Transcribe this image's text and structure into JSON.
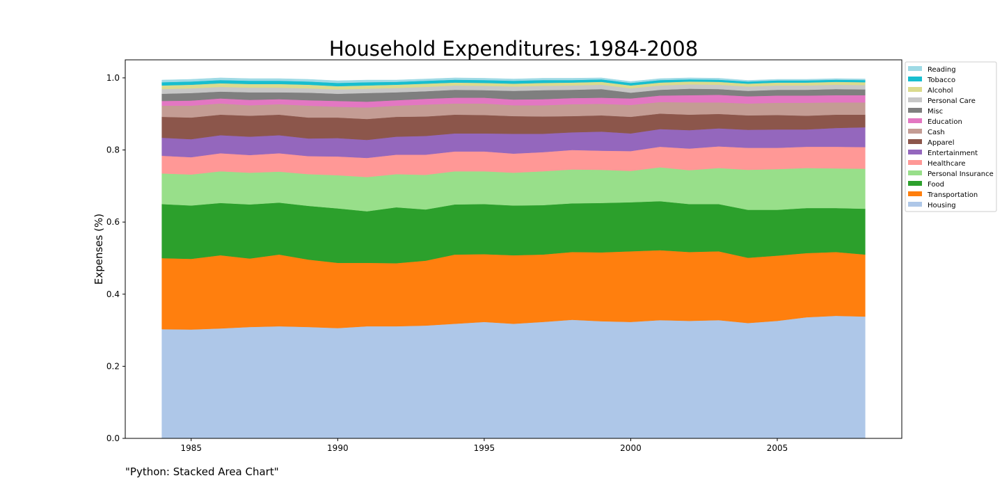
{
  "caption": "\"Python: Stacked Area Chart\"",
  "chart_data": {
    "type": "area",
    "stacked": true,
    "title": "Household Expenditures: 1984-2008",
    "xlabel": "",
    "ylabel": "Expenses (%)",
    "xlim": [
      1982.75,
      2009.25
    ],
    "ylim": [
      0,
      1.05
    ],
    "xticks": [
      1985,
      1990,
      1995,
      2000,
      2005
    ],
    "yticks": [
      0.0,
      0.2,
      0.4,
      0.6,
      0.8,
      1.0
    ],
    "xtick_labels": [
      "1985",
      "1990",
      "1995",
      "2000",
      "2005"
    ],
    "ytick_labels": [
      "0.0",
      "0.2",
      "0.4",
      "0.6",
      "0.8",
      "1.0"
    ],
    "legend_position": "outside-top-right",
    "grid": false,
    "x": [
      1984,
      1985,
      1986,
      1987,
      1988,
      1989,
      1990,
      1991,
      1992,
      1993,
      1994,
      1995,
      1996,
      1997,
      1998,
      1999,
      2000,
      2001,
      2002,
      2003,
      2004,
      2005,
      2006,
      2007,
      2008
    ],
    "series": [
      {
        "name": "Housing",
        "color": "#aec7e8",
        "values": [
          0.303,
          0.302,
          0.305,
          0.309,
          0.311,
          0.309,
          0.306,
          0.311,
          0.311,
          0.313,
          0.318,
          0.323,
          0.318,
          0.323,
          0.329,
          0.325,
          0.323,
          0.328,
          0.326,
          0.328,
          0.32,
          0.326,
          0.336,
          0.34,
          0.338
        ]
      },
      {
        "name": "Transportation",
        "color": "#ff7f0e",
        "values": [
          0.197,
          0.196,
          0.203,
          0.19,
          0.199,
          0.187,
          0.181,
          0.176,
          0.175,
          0.18,
          0.192,
          0.188,
          0.19,
          0.187,
          0.188,
          0.191,
          0.196,
          0.194,
          0.191,
          0.191,
          0.181,
          0.181,
          0.178,
          0.177,
          0.172
        ]
      },
      {
        "name": "Food",
        "color": "#2ca02c",
        "values": [
          0.15,
          0.148,
          0.145,
          0.15,
          0.144,
          0.149,
          0.151,
          0.143,
          0.155,
          0.142,
          0.139,
          0.139,
          0.138,
          0.137,
          0.135,
          0.137,
          0.136,
          0.136,
          0.133,
          0.131,
          0.133,
          0.127,
          0.125,
          0.122,
          0.127
        ]
      },
      {
        "name": "Personal Insurance",
        "color": "#98df8a",
        "values": [
          0.085,
          0.086,
          0.088,
          0.088,
          0.086,
          0.088,
          0.092,
          0.095,
          0.092,
          0.096,
          0.092,
          0.091,
          0.091,
          0.094,
          0.094,
          0.092,
          0.087,
          0.094,
          0.094,
          0.1,
          0.111,
          0.113,
          0.111,
          0.11,
          0.111
        ]
      },
      {
        "name": "Healthcare",
        "color": "#ff9896",
        "values": [
          0.049,
          0.048,
          0.05,
          0.049,
          0.051,
          0.05,
          0.052,
          0.053,
          0.054,
          0.056,
          0.055,
          0.055,
          0.053,
          0.053,
          0.054,
          0.053,
          0.055,
          0.057,
          0.06,
          0.06,
          0.061,
          0.059,
          0.059,
          0.06,
          0.06
        ]
      },
      {
        "name": "Entertainment",
        "color": "#9467bd",
        "values": [
          0.05,
          0.05,
          0.05,
          0.051,
          0.05,
          0.049,
          0.051,
          0.05,
          0.05,
          0.052,
          0.05,
          0.05,
          0.055,
          0.051,
          0.049,
          0.053,
          0.049,
          0.049,
          0.051,
          0.05,
          0.05,
          0.051,
          0.048,
          0.052,
          0.055
        ]
      },
      {
        "name": "Apparel",
        "color": "#8c564b",
        "values": [
          0.058,
          0.06,
          0.057,
          0.058,
          0.057,
          0.058,
          0.057,
          0.058,
          0.055,
          0.054,
          0.052,
          0.051,
          0.049,
          0.048,
          0.045,
          0.045,
          0.046,
          0.043,
          0.043,
          0.04,
          0.04,
          0.04,
          0.038,
          0.037,
          0.035
        ]
      },
      {
        "name": "Cash",
        "color": "#c49c94",
        "values": [
          0.031,
          0.033,
          0.031,
          0.029,
          0.029,
          0.033,
          0.03,
          0.032,
          0.031,
          0.033,
          0.031,
          0.032,
          0.03,
          0.031,
          0.033,
          0.032,
          0.033,
          0.032,
          0.034,
          0.032,
          0.033,
          0.034,
          0.036,
          0.034,
          0.034
        ]
      },
      {
        "name": "Education",
        "color": "#e377c2",
        "values": [
          0.013,
          0.014,
          0.014,
          0.015,
          0.014,
          0.015,
          0.016,
          0.016,
          0.015,
          0.016,
          0.016,
          0.016,
          0.016,
          0.017,
          0.017,
          0.017,
          0.018,
          0.018,
          0.02,
          0.021,
          0.02,
          0.02,
          0.02,
          0.02,
          0.02
        ]
      },
      {
        "name": "Misc",
        "color": "#7f7f7f",
        "values": [
          0.02,
          0.021,
          0.019,
          0.021,
          0.019,
          0.021,
          0.02,
          0.024,
          0.022,
          0.021,
          0.022,
          0.021,
          0.024,
          0.025,
          0.023,
          0.024,
          0.016,
          0.016,
          0.018,
          0.016,
          0.015,
          0.016,
          0.016,
          0.017,
          0.016
        ]
      },
      {
        "name": "Personal Care",
        "color": "#c7c7c7",
        "values": [
          0.013,
          0.013,
          0.013,
          0.013,
          0.013,
          0.012,
          0.012,
          0.012,
          0.012,
          0.012,
          0.012,
          0.012,
          0.012,
          0.012,
          0.012,
          0.012,
          0.012,
          0.012,
          0.012,
          0.012,
          0.012,
          0.012,
          0.012,
          0.012,
          0.012
        ]
      },
      {
        "name": "Alcohol",
        "color": "#dbdb8d",
        "values": [
          0.01,
          0.01,
          0.01,
          0.01,
          0.01,
          0.01,
          0.009,
          0.009,
          0.009,
          0.009,
          0.008,
          0.008,
          0.008,
          0.008,
          0.008,
          0.008,
          0.008,
          0.008,
          0.008,
          0.008,
          0.008,
          0.008,
          0.008,
          0.008,
          0.008
        ]
      },
      {
        "name": "Tobacco",
        "color": "#17becf",
        "values": [
          0.009,
          0.009,
          0.009,
          0.009,
          0.009,
          0.009,
          0.009,
          0.009,
          0.008,
          0.008,
          0.008,
          0.008,
          0.008,
          0.008,
          0.007,
          0.007,
          0.007,
          0.007,
          0.006,
          0.006,
          0.006,
          0.006,
          0.006,
          0.006,
          0.006
        ]
      },
      {
        "name": "Reading",
        "color": "#9edae5",
        "values": [
          0.006,
          0.006,
          0.006,
          0.006,
          0.006,
          0.006,
          0.006,
          0.006,
          0.005,
          0.005,
          0.005,
          0.005,
          0.005,
          0.005,
          0.005,
          0.004,
          0.004,
          0.004,
          0.004,
          0.004,
          0.003,
          0.003,
          0.003,
          0.003,
          0.003
        ]
      }
    ]
  }
}
